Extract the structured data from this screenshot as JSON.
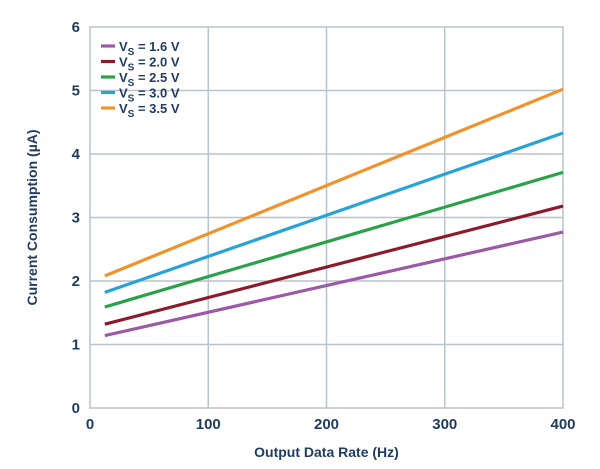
{
  "chart_data": {
    "type": "line",
    "xlabel": "Output Data Rate (Hz)",
    "ylabel": "Current Consumption (µA)",
    "xlim": [
      0,
      400
    ],
    "ylim": [
      0,
      6
    ],
    "xticks": [
      0,
      100,
      200,
      300,
      400
    ],
    "yticks": [
      0,
      1,
      2,
      3,
      4,
      5,
      6
    ],
    "grid": true,
    "legend_position": "top-left",
    "x": [
      12.5,
      400
    ],
    "series": [
      {
        "name": "VS = 1.6 V",
        "name_main": "V",
        "name_sub": "S",
        "name_rest": " = 1.6 V",
        "color": "#9b59a6",
        "values": [
          1.14,
          2.77
        ]
      },
      {
        "name": "VS = 2.0 V",
        "name_main": "V",
        "name_sub": "S",
        "name_rest": " = 2.0 V",
        "color": "#8b1a2b",
        "values": [
          1.32,
          3.18
        ]
      },
      {
        "name": "VS = 2.5 V",
        "name_main": "V",
        "name_sub": "S",
        "name_rest": " = 2.5 V",
        "color": "#2aa14a",
        "values": [
          1.59,
          3.71
        ]
      },
      {
        "name": "VS = 3.0 V",
        "name_main": "V",
        "name_sub": "S",
        "name_rest": " = 3.0 V",
        "color": "#29a3d6",
        "values": [
          1.82,
          4.33
        ]
      },
      {
        "name": "VS = 3.5 V",
        "name_main": "V",
        "name_sub": "S",
        "name_rest": " = 3.5 V",
        "color": "#f0932b",
        "values": [
          2.08,
          5.02
        ]
      }
    ]
  }
}
